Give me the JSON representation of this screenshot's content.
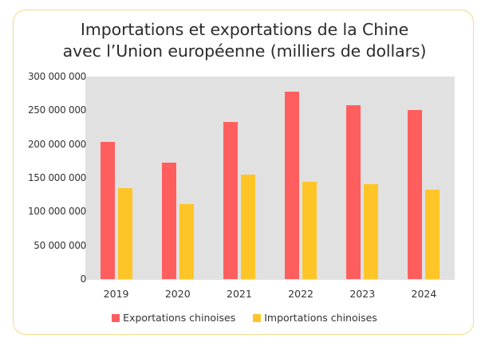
{
  "chart_data": {
    "type": "bar",
    "title": "Importations et exportations de la Chine avec l’Union européenne (milliers de dollars)",
    "title_lines": [
      "Importations et exportations de la Chine",
      "avec l’Union européenne (milliers de dollars)"
    ],
    "categories": [
      "2019",
      "2020",
      "2021",
      "2022",
      "2023",
      "2024"
    ],
    "series": [
      {
        "name": "Exportations chinoises",
        "color": "#ff5e5e",
        "values": [
          203000000,
          172000000,
          233000000,
          277000000,
          258000000,
          250000000
        ]
      },
      {
        "name": "Importations chinoises",
        "color": "#ffc527",
        "values": [
          135000000,
          111000000,
          155000000,
          144000000,
          141000000,
          132000000
        ]
      }
    ],
    "xlabel": "",
    "ylabel": "",
    "ylim": [
      0,
      300000000
    ],
    "yticks": [
      0,
      50000000,
      100000000,
      150000000,
      200000000,
      250000000,
      300000000
    ],
    "ytick_labels": [
      "0",
      "50 000 000",
      "100 000 000",
      "150 000 000",
      "200 000 000",
      "250 000 000",
      "300 000 000"
    ],
    "grid": false,
    "plot_background": "#e1e1e1",
    "legend_position": "bottom"
  },
  "legend": {
    "items": [
      {
        "label": "Exportations chinoises",
        "color": "#ff5e5e"
      },
      {
        "label": "Importations chinoises",
        "color": "#ffc527"
      }
    ]
  }
}
